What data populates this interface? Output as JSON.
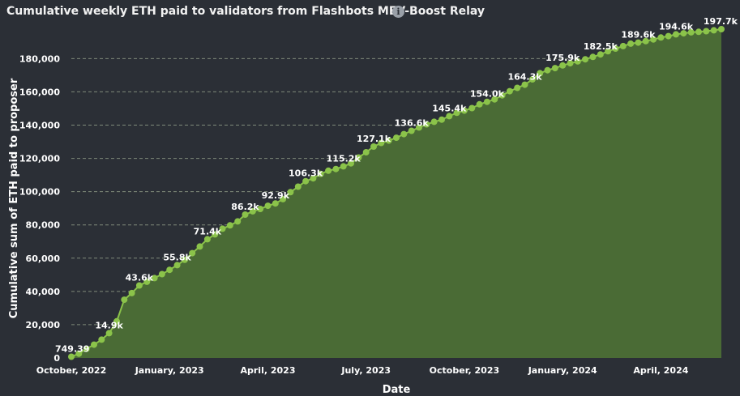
{
  "header": {
    "title": "Cumulative weekly ETH paid to validators from Flashbots MEV-Boost Relay",
    "info_icon": "info-icon"
  },
  "colors": {
    "background": "#2b2f36",
    "line": "#8bc34a",
    "area": "#4a6b35",
    "grid": "#7f8a7a"
  },
  "chart_data": {
    "type": "area",
    "title": "Cumulative weekly ETH paid to validators from Flashbots MEV-Boost Relay",
    "xlabel": "Date",
    "ylabel": "Cumulative sum of ETH paid to proposer",
    "ylim": [
      0,
      197700
    ],
    "y_ticks": [
      0,
      20000,
      40000,
      60000,
      80000,
      100000,
      120000,
      140000,
      160000,
      180000
    ],
    "y_tick_labels": [
      "0",
      "20,000",
      "40,000",
      "60,000",
      "80,000",
      "100,000",
      "120,000",
      "140,000",
      "160,000",
      "180,000"
    ],
    "x_tick_labels": [
      {
        "label": "October, 2022",
        "week": 0
      },
      {
        "label": "January, 2023",
        "week": 13
      },
      {
        "label": "April, 2023",
        "week": 26
      },
      {
        "label": "July, 2023",
        "week": 39
      },
      {
        "label": "October, 2023",
        "week": 52
      },
      {
        "label": "January, 2024",
        "week": 65
      },
      {
        "label": "April, 2024",
        "week": 78
      }
    ],
    "grid": true,
    "legend": false,
    "series": [
      {
        "values": [
          749.39,
          2600,
          5500,
          8000,
          11000,
          14900,
          22000,
          35000,
          39000,
          43600,
          45800,
          48000,
          50400,
          53000,
          55800,
          59000,
          63000,
          67000,
          71400,
          74300,
          77700,
          79700,
          82100,
          86200,
          88200,
          89600,
          91500,
          92900,
          95500,
          99700,
          103000,
          106300,
          108000,
          110700,
          112600,
          113600,
          115200,
          117000,
          120500,
          123700,
          127100,
          129300,
          130700,
          132400,
          134600,
          136600,
          138600,
          140500,
          142000,
          143300,
          145400,
          147400,
          148700,
          150200,
          152500,
          154000,
          155500,
          157900,
          160400,
          162400,
          164300,
          167500,
          171200,
          173000,
          174300,
          175900,
          177200,
          178300,
          179600,
          181000,
          182500,
          184400,
          186000,
          187500,
          189000,
          189600,
          190500,
          191500,
          192700,
          193500,
          194600,
          195200,
          195800,
          196100,
          196500,
          197000,
          197700
        ]
      }
    ],
    "data_labels": [
      {
        "week": 0,
        "text": "749.39"
      },
      {
        "week": 5,
        "text": "14.9k"
      },
      {
        "week": 9,
        "text": "43.6k"
      },
      {
        "week": 14,
        "text": "55.8k"
      },
      {
        "week": 18,
        "text": "71.4k"
      },
      {
        "week": 23,
        "text": "86.2k"
      },
      {
        "week": 27,
        "text": "92.9k"
      },
      {
        "week": 31,
        "text": "106.3k"
      },
      {
        "week": 36,
        "text": "115.2k"
      },
      {
        "week": 40,
        "text": "127.1k"
      },
      {
        "week": 45,
        "text": "136.6k"
      },
      {
        "week": 50,
        "text": "145.4k"
      },
      {
        "week": 55,
        "text": "154.0k"
      },
      {
        "week": 60,
        "text": "164.3k"
      },
      {
        "week": 65,
        "text": "175.9k"
      },
      {
        "week": 70,
        "text": "182.5k"
      },
      {
        "week": 75,
        "text": "189.6k"
      },
      {
        "week": 80,
        "text": "194.6k"
      },
      {
        "week": 86,
        "text": "197.7k"
      }
    ]
  }
}
